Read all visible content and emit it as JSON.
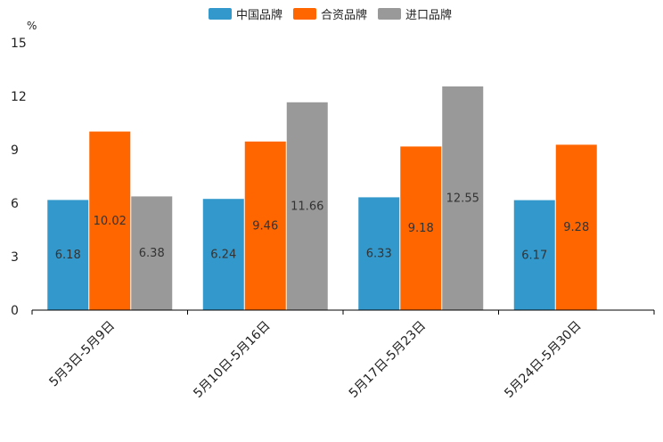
{
  "chart_data": {
    "type": "bar",
    "unit": "%",
    "categories": [
      "5月3日-5月9日",
      "5月10日-5月16日",
      "5月17日-5月23日",
      "5月24日-5月30日"
    ],
    "series": [
      {
        "name": "中国品牌",
        "color": "#3399cc",
        "values": [
          6.18,
          6.24,
          6.33,
          6.17
        ],
        "labels": [
          "6.18",
          "6.24",
          "6.33",
          "6.17"
        ]
      },
      {
        "name": "合资品牌",
        "color": "#ff6600",
        "values": [
          10.02,
          9.46,
          9.18,
          9.28
        ],
        "labels": [
          "10.02",
          "9.46",
          "9.18",
          "9.28"
        ]
      },
      {
        "name": "进口品牌",
        "color": "#999999",
        "values": [
          6.38,
          11.66,
          12.55,
          null
        ],
        "labels": [
          "6.38",
          "11.66",
          "12.55",
          null
        ]
      }
    ],
    "ylim": [
      0,
      15
    ],
    "yticks": [
      "0",
      "3",
      "6",
      "9",
      "12",
      "15"
    ],
    "legend_position": "top-center",
    "grid": false
  }
}
